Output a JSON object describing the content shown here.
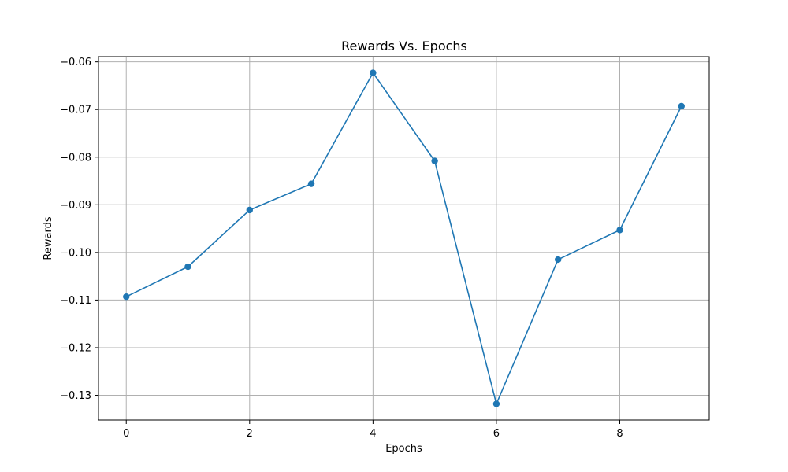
{
  "chart_data": {
    "type": "line",
    "title": "Rewards Vs. Epochs",
    "xlabel": "Epochs",
    "ylabel": "Rewards",
    "x": [
      0,
      1,
      2,
      3,
      4,
      5,
      6,
      7,
      8,
      9
    ],
    "series": [
      {
        "values": [
          -0.1093,
          -0.103,
          -0.0911,
          -0.0856,
          -0.0623,
          -0.0808,
          -0.1318,
          -0.1015,
          -0.0953,
          -0.0693
        ],
        "color": "#1f77b4",
        "marker": "circle"
      }
    ],
    "xlim": [
      -0.45,
      9.45
    ],
    "ylim": [
      -0.1352,
      -0.0589
    ],
    "xticks": [
      0,
      2,
      4,
      6,
      8
    ],
    "xtick_labels": [
      "0",
      "2",
      "4",
      "6",
      "8"
    ],
    "yticks": [
      -0.06,
      -0.07,
      -0.08,
      -0.09,
      -0.1,
      -0.11,
      -0.12,
      -0.13
    ],
    "ytick_labels": [
      "−0.06",
      "−0.07",
      "−0.08",
      "−0.09",
      "−0.10",
      "−0.11",
      "−0.12",
      "−0.13"
    ],
    "grid": true,
    "legend": "none"
  }
}
